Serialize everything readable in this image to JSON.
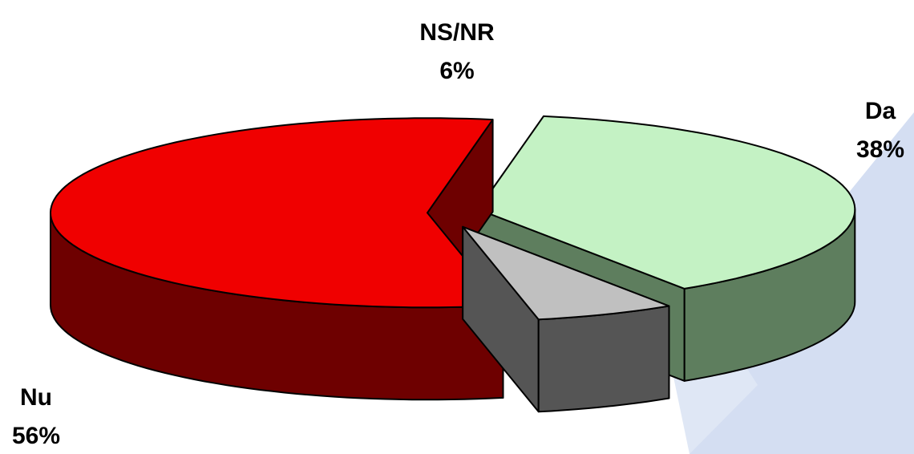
{
  "chart_data": {
    "type": "pie3d",
    "categories": [
      "Da",
      "NS/NR",
      "Nu"
    ],
    "values": [
      38,
      6,
      56
    ],
    "value_labels": [
      "38%",
      "6%",
      "56%"
    ],
    "colors": [
      "#c4f2c4",
      "#c0c0c0",
      "#f00000"
    ],
    "side_colors": [
      "#5e7e5e",
      "#555555",
      "#6e0000"
    ]
  }
}
